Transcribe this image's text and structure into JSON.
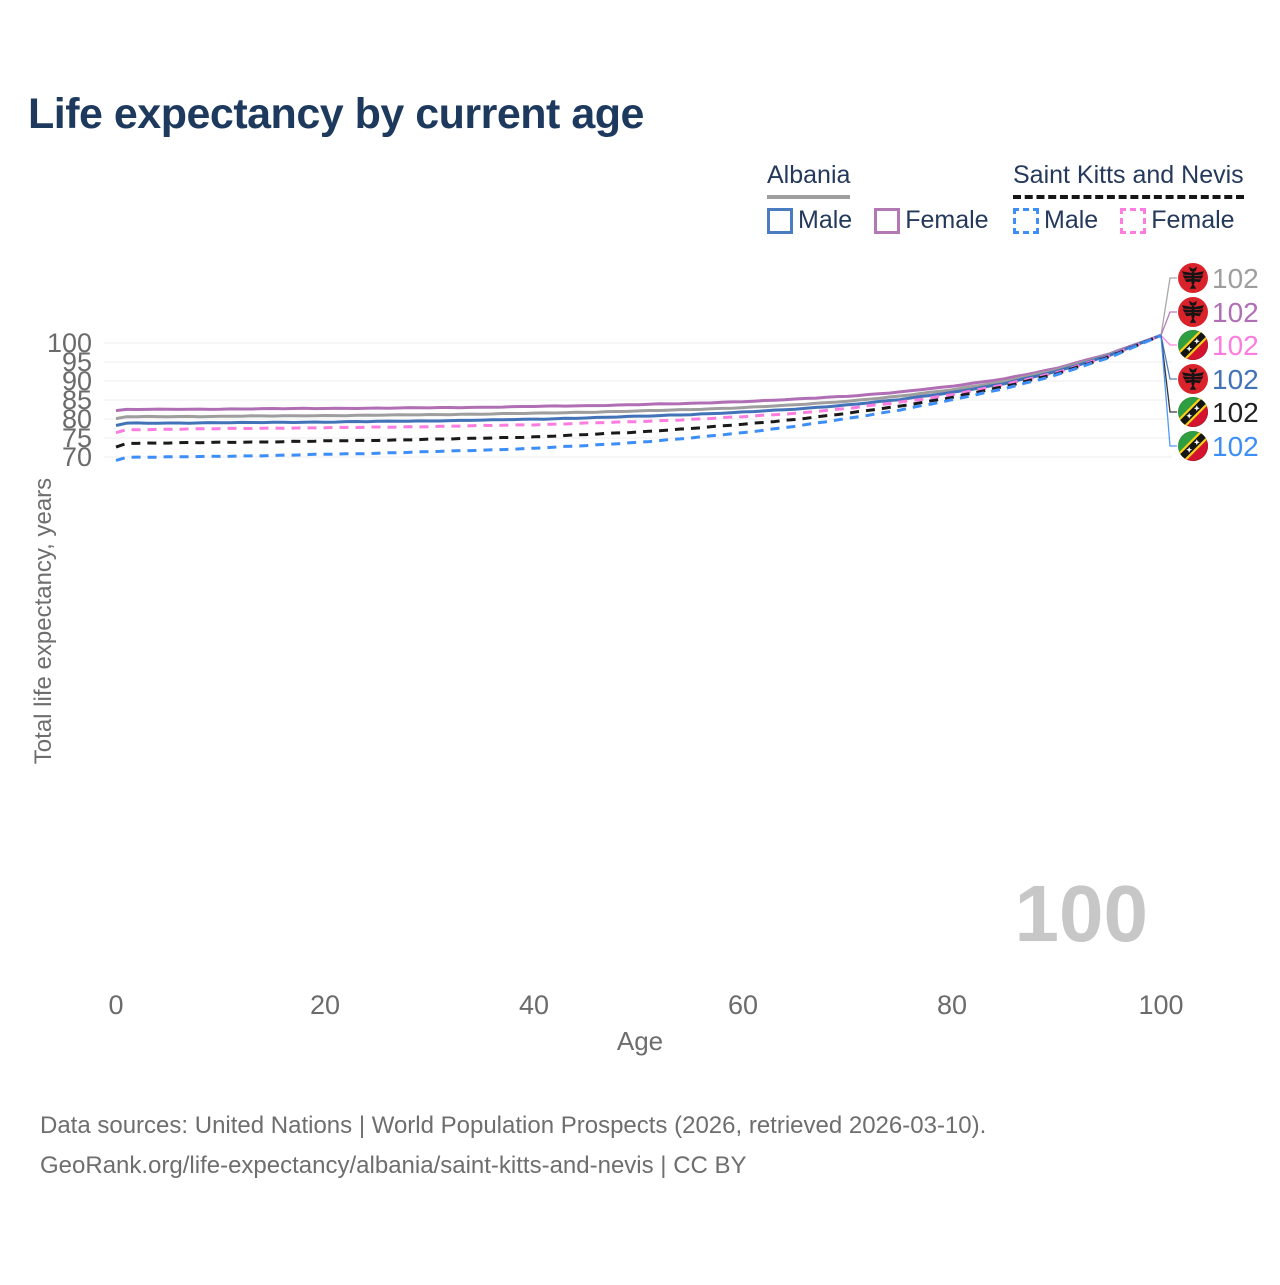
{
  "title": "Life expectancy by current age",
  "legend": {
    "albania": {
      "label": "Albania",
      "male": "Male",
      "female": "Female"
    },
    "saint_kitts_and_nevis": {
      "label": "Saint Kitts and Nevis",
      "male": "Male",
      "female": "Female"
    }
  },
  "watermark_year": "100",
  "footer": {
    "line1": "Data sources: United Nations | World Population Prospects (2026, retrieved 2026-03-10).",
    "line2": "GeoRank.org/life-expectancy/albania/saint-kitts-and-nevis | CC BY"
  },
  "chart_data": {
    "type": "line",
    "title": "Life expectancy by current age",
    "xlabel": "Age",
    "ylabel": "Total life expectancy, years",
    "xlim": [
      0,
      100
    ],
    "ylim": [
      68.5,
      103
    ],
    "xticks": [
      0,
      20,
      40,
      60,
      80,
      100
    ],
    "yticks": [
      70,
      75,
      80,
      85,
      90,
      95,
      100
    ],
    "grid": "horizontal",
    "legend_position": "top-right",
    "colors": {
      "albania_total": "#9e9e9e",
      "albania_female": "#b06fb4",
      "albania_male": "#4272b8",
      "skn_female": "#fc7ce0",
      "skn_total": "#1a1a1a",
      "skn_male": "#3e8ef7"
    },
    "series": [
      {
        "name": "Albania Female",
        "country": "Albania",
        "sex": "Female",
        "style": "solid",
        "color": "#b06fb4",
        "x_anchors": [
          0,
          1,
          5,
          10,
          15,
          20,
          25,
          30,
          35,
          40,
          45,
          50,
          55,
          60,
          65,
          70,
          75,
          80,
          85,
          90,
          95,
          100
        ],
        "values": [
          82.2,
          82.5,
          82.55,
          82.6,
          82.7,
          82.8,
          82.85,
          82.95,
          83.1,
          83.3,
          83.5,
          83.8,
          84.1,
          84.6,
          85.2,
          86.0,
          87.1,
          88.6,
          90.6,
          93.3,
          97.1,
          102
        ]
      },
      {
        "name": "Albania Both sexes",
        "country": "Albania",
        "sex": "Both",
        "style": "solid",
        "color": "#9e9e9e",
        "x_anchors": [
          0,
          1,
          5,
          10,
          15,
          20,
          25,
          30,
          35,
          40,
          45,
          50,
          55,
          60,
          65,
          70,
          75,
          80,
          85,
          90,
          95,
          100
        ],
        "values": [
          80.1,
          80.6,
          80.65,
          80.7,
          80.8,
          80.9,
          81.0,
          81.15,
          81.3,
          81.5,
          81.8,
          82.1,
          82.5,
          83.0,
          83.7,
          84.7,
          86.0,
          87.7,
          89.9,
          92.9,
          96.9,
          102
        ]
      },
      {
        "name": "Albania Male",
        "country": "Albania",
        "sex": "Male",
        "style": "solid",
        "color": "#4272b8",
        "x_anchors": [
          0,
          1,
          5,
          10,
          15,
          20,
          25,
          30,
          35,
          40,
          45,
          50,
          55,
          60,
          65,
          70,
          75,
          80,
          85,
          90,
          95,
          100
        ],
        "values": [
          78.3,
          78.9,
          78.95,
          79.0,
          79.1,
          79.2,
          79.35,
          79.5,
          79.7,
          79.95,
          80.3,
          80.7,
          81.2,
          81.8,
          82.6,
          83.7,
          85.1,
          87.0,
          89.3,
          92.5,
          96.7,
          102
        ]
      },
      {
        "name": "Saint Kitts and Nevis Female",
        "country": "Saint Kitts and Nevis",
        "sex": "Female",
        "style": "dashed",
        "color": "#fc7ce0",
        "x_anchors": [
          0,
          1,
          5,
          10,
          15,
          20,
          25,
          30,
          35,
          40,
          45,
          50,
          55,
          60,
          65,
          70,
          75,
          80,
          85,
          90,
          95,
          100
        ],
        "values": [
          76.4,
          77.2,
          77.3,
          77.45,
          77.6,
          77.7,
          77.85,
          78.0,
          78.25,
          78.5,
          78.9,
          79.3,
          79.9,
          80.6,
          81.5,
          82.8,
          84.4,
          86.4,
          89.0,
          92.2,
          96.5,
          102
        ]
      },
      {
        "name": "Saint Kitts and Nevis Both sexes",
        "country": "Saint Kitts and Nevis",
        "sex": "Both",
        "style": "dashed",
        "color": "#1a1a1a",
        "x_anchors": [
          0,
          1,
          5,
          10,
          15,
          20,
          25,
          30,
          35,
          40,
          45,
          50,
          55,
          60,
          65,
          70,
          75,
          80,
          85,
          90,
          95,
          100
        ],
        "values": [
          72.6,
          73.6,
          73.7,
          73.85,
          74.0,
          74.2,
          74.4,
          74.65,
          74.95,
          75.3,
          75.9,
          76.6,
          77.5,
          78.6,
          79.9,
          81.5,
          83.4,
          85.7,
          88.5,
          91.9,
          96.3,
          102
        ]
      },
      {
        "name": "Saint Kitts and Nevis Male",
        "country": "Saint Kitts and Nevis",
        "sex": "Male",
        "style": "dashed",
        "color": "#3e8ef7",
        "x_anchors": [
          0,
          1,
          5,
          10,
          15,
          20,
          25,
          30,
          35,
          40,
          45,
          50,
          55,
          60,
          65,
          70,
          75,
          80,
          85,
          90,
          95,
          100
        ],
        "values": [
          69.1,
          69.9,
          70.0,
          70.2,
          70.4,
          70.7,
          71.0,
          71.4,
          71.8,
          72.3,
          73.0,
          73.9,
          75.0,
          76.4,
          78.1,
          80.1,
          82.4,
          85.0,
          88.0,
          91.6,
          96.1,
          102
        ]
      }
    ],
    "end_labels": [
      {
        "flag": "albania",
        "value": "102",
        "color": "#9e9e9e",
        "series": "Albania Both sexes"
      },
      {
        "flag": "albania",
        "value": "102",
        "color": "#b06fb4",
        "series": "Albania Female"
      },
      {
        "flag": "skn",
        "value": "102",
        "color": "#fc7ce0",
        "series": "Saint Kitts and Nevis Female"
      },
      {
        "flag": "albania",
        "value": "102",
        "color": "#4272b8",
        "series": "Albania Male"
      },
      {
        "flag": "skn",
        "value": "102",
        "color": "#212121",
        "series": "Saint Kitts and Nevis Both sexes"
      },
      {
        "flag": "skn",
        "value": "102",
        "color": "#3e8ef7",
        "series": "Saint Kitts and Nevis Male"
      }
    ]
  }
}
